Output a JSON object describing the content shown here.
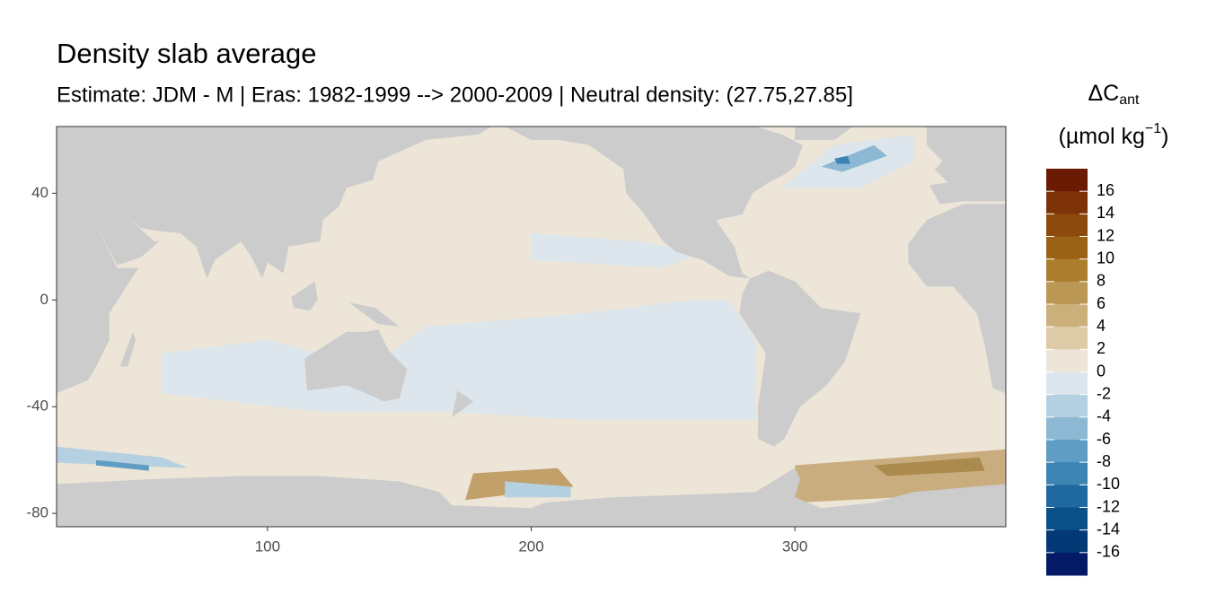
{
  "chart_data": {
    "type": "raster",
    "title": "Density slab average",
    "subtitle": "Estimate: JDM - M | Eras: 1982-1999 --> 2000-2009 | Neutral density: (27.75,27.85]",
    "xlim": [
      20,
      380
    ],
    "ylim": [
      -85,
      65
    ],
    "xticks": [
      100,
      200,
      300
    ],
    "yticks": [
      40,
      0,
      -40,
      -80
    ],
    "colorbar": {
      "title": "ΔC",
      "title_sub": "ant",
      "unit": "(µmol kg",
      "unit_sup": "−1",
      "unit_close": ")",
      "colorlim": [
        -18,
        18
      ],
      "breaks": [
        16,
        14,
        12,
        10,
        8,
        6,
        4,
        2,
        0,
        -2,
        -4,
        -6,
        -8,
        -10,
        -12,
        -14,
        -16
      ],
      "colors": [
        "#6b1a04",
        "#7d3208",
        "#8c4a0c",
        "#9a6214",
        "#ab7e2e",
        "#bb9755",
        "#ccb07c",
        "#ddcaa6",
        "#ece5d8",
        "#dce6ec",
        "#b5d1e1",
        "#8cb8d3",
        "#5f9dc4",
        "#3e84b3",
        "#1f69a0",
        "#0a518a",
        "#033a75",
        "#041a66"
      ]
    }
  }
}
